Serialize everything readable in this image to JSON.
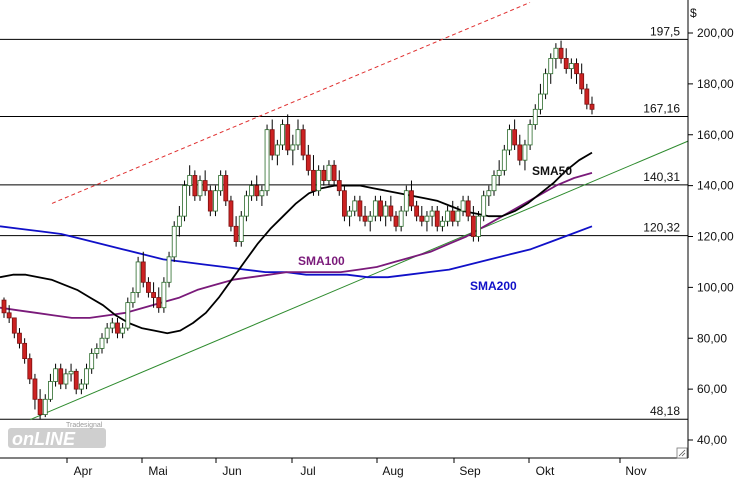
{
  "chart_data": {
    "type": "candlestick",
    "y_unit": "$",
    "ylim": [
      40,
      205
    ],
    "y_ticks": [
      "200,00",
      "180,00",
      "160,00",
      "140,00",
      "120,00",
      "100,00",
      "80,00",
      "60,00",
      "40,00"
    ],
    "y_tick_values": [
      200,
      180,
      160,
      140,
      120,
      100,
      80,
      60,
      40
    ],
    "x_month_labels": [
      "Apr",
      "Mai",
      "Jun",
      "Jul",
      "Aug",
      "Sep",
      "Okt",
      "Nov"
    ],
    "grid": false,
    "horizontal_levels": [
      {
        "label": "197,5",
        "value": 197.5
      },
      {
        "label": "167,16",
        "value": 167.16
      },
      {
        "label": "140,31",
        "value": 140.31
      },
      {
        "label": "120,32",
        "value": 120.32
      },
      {
        "label": "48,18",
        "value": 48.18
      }
    ],
    "indicators": [
      {
        "name": "SMA50",
        "color": "#000000"
      },
      {
        "name": "SMA100",
        "color": "#7a1a7a"
      },
      {
        "name": "SMA200",
        "color": "#1010c8"
      }
    ],
    "trendlines": [
      {
        "kind": "support",
        "color": "#2e8b2e",
        "points": [
          [
            "Mar-25",
            48
          ],
          [
            "Nov-15",
            157
          ]
        ]
      },
      {
        "kind": "resistance",
        "color": "#e03030",
        "style": "dashed",
        "points": [
          [
            "Mar-30",
            134
          ],
          [
            "Oct-15",
            212
          ]
        ]
      }
    ],
    "candles_ohlc": [
      [
        95,
        96,
        88,
        90
      ],
      [
        90,
        93,
        86,
        88
      ],
      [
        88,
        88,
        80,
        82
      ],
      [
        82,
        84,
        76,
        78
      ],
      [
        78,
        80,
        70,
        72
      ],
      [
        72,
        74,
        62,
        64
      ],
      [
        64,
        66,
        52,
        56
      ],
      [
        56,
        60,
        48,
        50
      ],
      [
        50,
        58,
        49,
        56
      ],
      [
        56,
        66,
        55,
        63
      ],
      [
        63,
        70,
        61,
        68
      ],
      [
        68,
        70,
        60,
        62
      ],
      [
        62,
        68,
        60,
        66
      ],
      [
        66,
        70,
        63,
        67
      ],
      [
        67,
        68,
        58,
        60
      ],
      [
        60,
        64,
        58,
        62
      ],
      [
        62,
        70,
        60,
        68
      ],
      [
        68,
        76,
        66,
        74
      ],
      [
        74,
        78,
        72,
        76
      ],
      [
        76,
        82,
        74,
        80
      ],
      [
        80,
        86,
        78,
        84
      ],
      [
        84,
        88,
        82,
        86
      ],
      [
        86,
        88,
        80,
        82
      ],
      [
        82,
        86,
        80,
        84
      ],
      [
        84,
        96,
        83,
        94
      ],
      [
        94,
        100,
        92,
        98
      ],
      [
        98,
        112,
        96,
        110
      ],
      [
        110,
        114,
        100,
        102
      ],
      [
        102,
        104,
        96,
        98
      ],
      [
        98,
        102,
        92,
        96
      ],
      [
        96,
        100,
        90,
        92
      ],
      [
        92,
        104,
        90,
        102
      ],
      [
        102,
        114,
        100,
        112
      ],
      [
        112,
        126,
        110,
        124
      ],
      [
        124,
        132,
        120,
        128
      ],
      [
        128,
        142,
        126,
        140
      ],
      [
        140,
        148,
        136,
        144
      ],
      [
        144,
        146,
        134,
        136
      ],
      [
        136,
        144,
        134,
        142
      ],
      [
        142,
        146,
        136,
        138
      ],
      [
        138,
        140,
        128,
        130
      ],
      [
        130,
        140,
        128,
        138
      ],
      [
        138,
        146,
        136,
        144
      ],
      [
        144,
        146,
        132,
        134
      ],
      [
        134,
        136,
        122,
        124
      ],
      [
        124,
        128,
        116,
        118
      ],
      [
        118,
        130,
        116,
        128
      ],
      [
        128,
        138,
        126,
        136
      ],
      [
        136,
        142,
        134,
        140
      ],
      [
        140,
        144,
        134,
        136
      ],
      [
        136,
        140,
        132,
        138
      ],
      [
        138,
        164,
        136,
        162
      ],
      [
        162,
        166,
        150,
        152
      ],
      [
        152,
        158,
        148,
        156
      ],
      [
        156,
        166,
        154,
        164
      ],
      [
        164,
        168,
        152,
        154
      ],
      [
        154,
        160,
        148,
        156
      ],
      [
        156,
        166,
        154,
        162
      ],
      [
        162,
        164,
        150,
        152
      ],
      [
        152,
        156,
        144,
        146
      ],
      [
        146,
        152,
        136,
        138
      ],
      [
        138,
        148,
        136,
        146
      ],
      [
        146,
        148,
        140,
        142
      ],
      [
        142,
        150,
        140,
        148
      ],
      [
        148,
        150,
        140,
        142
      ],
      [
        142,
        146,
        136,
        138
      ],
      [
        138,
        140,
        126,
        128
      ],
      [
        128,
        132,
        124,
        130
      ],
      [
        130,
        136,
        128,
        134
      ],
      [
        134,
        136,
        126,
        128
      ],
      [
        128,
        132,
        124,
        126
      ],
      [
        126,
        130,
        122,
        128
      ],
      [
        128,
        136,
        126,
        134
      ],
      [
        134,
        136,
        126,
        128
      ],
      [
        128,
        134,
        124,
        132
      ],
      [
        132,
        136,
        126,
        128
      ],
      [
        128,
        130,
        122,
        124
      ],
      [
        124,
        132,
        122,
        130
      ],
      [
        130,
        140,
        128,
        138
      ],
      [
        138,
        142,
        130,
        132
      ],
      [
        132,
        134,
        126,
        128
      ],
      [
        128,
        132,
        124,
        126
      ],
      [
        126,
        130,
        122,
        128
      ],
      [
        128,
        132,
        124,
        130
      ],
      [
        130,
        132,
        122,
        124
      ],
      [
        124,
        128,
        122,
        126
      ],
      [
        126,
        132,
        124,
        130
      ],
      [
        130,
        134,
        124,
        126
      ],
      [
        126,
        132,
        124,
        130
      ],
      [
        130,
        136,
        128,
        134
      ],
      [
        134,
        136,
        126,
        128
      ],
      [
        128,
        132,
        118,
        120
      ],
      [
        120,
        130,
        118,
        128
      ],
      [
        128,
        138,
        126,
        136
      ],
      [
        136,
        140,
        132,
        138
      ],
      [
        138,
        146,
        136,
        144
      ],
      [
        144,
        150,
        140,
        146
      ],
      [
        146,
        156,
        144,
        154
      ],
      [
        154,
        164,
        152,
        162
      ],
      [
        162,
        166,
        154,
        156
      ],
      [
        156,
        160,
        148,
        150
      ],
      [
        150,
        158,
        146,
        156
      ],
      [
        156,
        166,
        154,
        164
      ],
      [
        164,
        172,
        162,
        170
      ],
      [
        170,
        180,
        168,
        176
      ],
      [
        176,
        186,
        174,
        184
      ],
      [
        184,
        192,
        180,
        190
      ],
      [
        190,
        196,
        186,
        194
      ],
      [
        194,
        197,
        188,
        190
      ],
      [
        190,
        194,
        184,
        186
      ],
      [
        186,
        190,
        182,
        188
      ],
      [
        188,
        190,
        180,
        184
      ],
      [
        184,
        188,
        176,
        178
      ],
      [
        178,
        180,
        170,
        172
      ],
      [
        172,
        175,
        168,
        170
      ]
    ],
    "sma50": [
      104,
      105,
      105,
      104,
      103,
      101,
      99,
      96,
      93,
      89,
      86,
      84,
      83,
      82,
      83,
      86,
      90,
      96,
      103,
      110,
      117,
      123,
      128,
      133,
      137,
      139,
      140,
      140,
      140,
      139,
      138,
      137,
      136,
      135,
      134,
      132,
      130,
      129,
      128,
      128,
      130,
      133,
      137,
      141,
      146,
      150,
      153
    ],
    "sma100": [
      92,
      91,
      90,
      89,
      88,
      88,
      89,
      90,
      92,
      94,
      96,
      99,
      101,
      103,
      104,
      105,
      106,
      106,
      106,
      106,
      107,
      108,
      110,
      112,
      114,
      117,
      120,
      124,
      128,
      132,
      136,
      140,
      143,
      145
    ],
    "sma200": [
      124,
      123,
      122,
      121,
      119,
      117,
      115,
      113,
      111,
      110,
      109,
      108,
      107,
      106,
      106,
      105,
      105,
      105,
      104,
      104,
      105,
      106,
      107,
      109,
      111,
      113,
      115,
      118,
      121,
      124
    ]
  }
}
